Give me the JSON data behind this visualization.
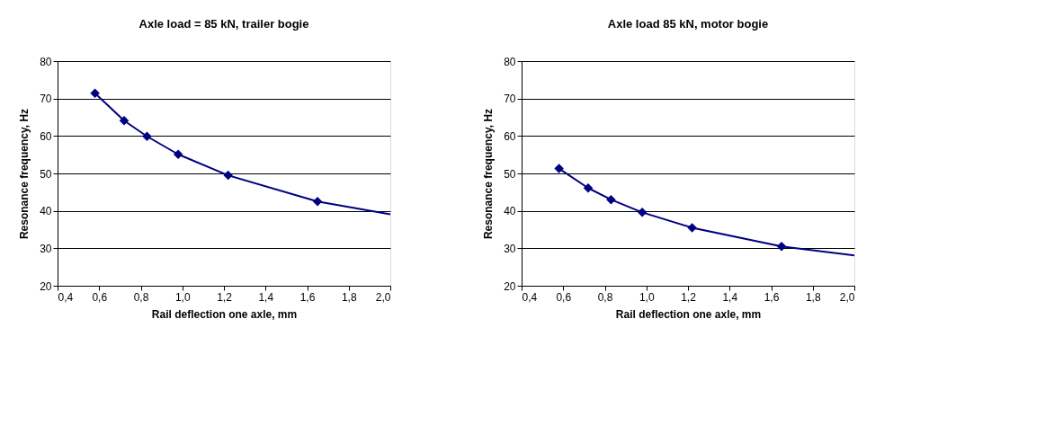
{
  "chart_data": [
    {
      "type": "line",
      "title": "Axle load = 85 kN, trailer bogie",
      "xlabel": "Rail deflection one axle, mm",
      "ylabel": "Resonance frequency, Hz",
      "xlim": [
        0.4,
        2.0
      ],
      "xticks": [
        {
          "value": 0.4,
          "label": "0,4"
        },
        {
          "value": 0.6,
          "label": "0,6"
        },
        {
          "value": 0.8,
          "label": "0,8"
        },
        {
          "value": 1.0,
          "label": "1,0"
        },
        {
          "value": 1.2,
          "label": "1,2"
        },
        {
          "value": 1.4,
          "label": "1,4"
        },
        {
          "value": 1.6,
          "label": "1,6"
        },
        {
          "value": 1.8,
          "label": "1,8"
        },
        {
          "value": 2.0,
          "label": "2,0"
        }
      ],
      "ylim": [
        20,
        80
      ],
      "yticks": [
        20,
        30,
        40,
        50,
        60,
        70,
        80
      ],
      "grid": "y",
      "line_style": "solid",
      "series": [
        {
          "color": "#000080",
          "marker": "diamond",
          "x": [
            0.58,
            0.72,
            0.83,
            0.98,
            1.22,
            1.65
          ],
          "values": [
            71.4,
            64.1,
            59.9,
            55.1,
            49.5,
            42.5
          ]
        },
        {
          "color": "#000080",
          "marker": "none",
          "x": [
            1.65,
            2.0
          ],
          "values": [
            42.5,
            39.1
          ]
        }
      ]
    },
    {
      "type": "line",
      "title": "Axle load 85 kN, motor bogie",
      "xlabel": "Rail deflection one axle, mm",
      "ylabel": "Resonance frequency, Hz",
      "xlim": [
        0.4,
        2.0
      ],
      "xticks": [
        {
          "value": 0.4,
          "label": "0,4"
        },
        {
          "value": 0.6,
          "label": "0,6"
        },
        {
          "value": 0.8,
          "label": "0,8"
        },
        {
          "value": 1.0,
          "label": "1,0"
        },
        {
          "value": 1.2,
          "label": "1,2"
        },
        {
          "value": 1.4,
          "label": "1,4"
        },
        {
          "value": 1.6,
          "label": "1,6"
        },
        {
          "value": 1.8,
          "label": "1,8"
        },
        {
          "value": 2.0,
          "label": "2,0"
        }
      ],
      "ylim": [
        20,
        80
      ],
      "yticks": [
        20,
        30,
        40,
        50,
        60,
        70,
        80
      ],
      "grid": "y",
      "line_style": "solid",
      "series": [
        {
          "color": "#000080",
          "marker": "diamond",
          "x": [
            0.58,
            0.72,
            0.83,
            0.98,
            1.22,
            1.65
          ],
          "values": [
            51.3,
            46.1,
            43.0,
            39.6,
            35.5,
            30.5
          ]
        },
        {
          "color": "#000080",
          "marker": "none",
          "x": [
            1.65,
            2.0
          ],
          "values": [
            30.5,
            28.1
          ]
        }
      ]
    }
  ]
}
